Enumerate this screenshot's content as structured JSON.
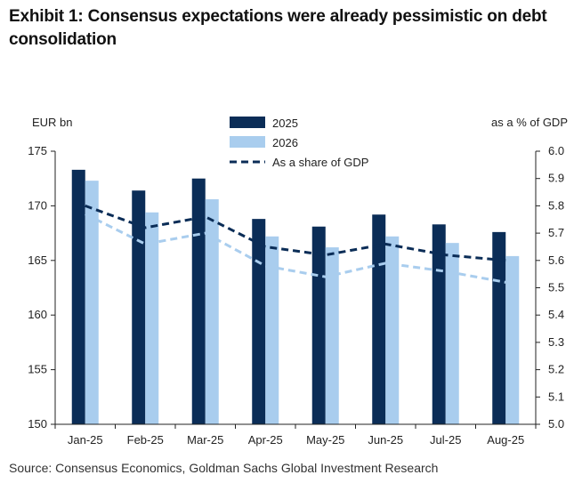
{
  "title": "Exhibit 1: Consensus expectations were already pessimistic on debt consolidation",
  "source": "Source: Consensus Economics, Goldman Sachs Global Investment Research",
  "chart_data": {
    "type": "bar",
    "categories": [
      "Jan-25",
      "Feb-25",
      "Mar-25",
      "Apr-25",
      "May-25",
      "Jun-25",
      "Jul-25",
      "Aug-25"
    ],
    "ylabel_left": "EUR bn",
    "ylabel_right": "as a % of GDP",
    "ylim_left": [
      150,
      175
    ],
    "yticks_left": [
      "150",
      "155",
      "160",
      "165",
      "170",
      "175"
    ],
    "ylim_right": [
      5.0,
      6.0
    ],
    "yticks_right": [
      "5.0",
      "5.1",
      "5.2",
      "5.3",
      "5.4",
      "5.5",
      "5.6",
      "5.7",
      "5.8",
      "5.9",
      "6.0"
    ],
    "series": [
      {
        "name": "2025",
        "kind": "bar",
        "axis": "left",
        "color": "#0b2d57",
        "values": [
          173.3,
          171.4,
          172.5,
          168.8,
          168.1,
          169.2,
          168.3,
          167.6
        ]
      },
      {
        "name": "2026",
        "kind": "bar",
        "axis": "left",
        "color": "#a9cdee",
        "values": [
          172.3,
          169.4,
          170.6,
          167.2,
          166.2,
          167.2,
          166.6,
          165.4
        ]
      },
      {
        "name": "As a share of GDP",
        "kind": "dashed-line",
        "axis": "right",
        "color": "#0b2d57",
        "values": [
          5.8,
          5.72,
          5.76,
          5.65,
          5.62,
          5.66,
          5.62,
          5.6
        ]
      },
      {
        "name": "",
        "kind": "dashed-line",
        "axis": "right",
        "color": "#a9cdee",
        "values": [
          5.77,
          5.66,
          5.7,
          5.58,
          5.54,
          5.59,
          5.56,
          5.52
        ]
      }
    ],
    "legend_position": "top-center",
    "grid": false
  }
}
